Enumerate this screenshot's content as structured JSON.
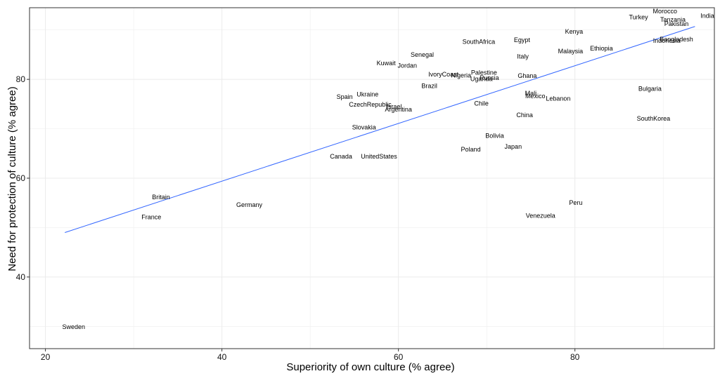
{
  "chart_data": {
    "type": "scatter",
    "title": "",
    "xlabel": "Superiority of own culture (% agree)",
    "ylabel": "Need for protection of culture (% agree)",
    "xlim": [
      18.2,
      95.8
    ],
    "ylim": [
      25.5,
      94.5
    ],
    "x_ticks": [
      20,
      40,
      60,
      80
    ],
    "y_ticks": [
      40,
      60,
      80
    ],
    "grid": true,
    "legend": "none",
    "colors": {
      "trend": "#3366FF",
      "grid": "#EBEBEB",
      "panel_border": "#333333"
    },
    "trend_line": {
      "x": [
        22.2,
        93.6
      ],
      "y": [
        49.0,
        90.7
      ]
    },
    "points": [
      {
        "label": "Sweden",
        "x": 23.2,
        "y": 29.9
      },
      {
        "label": "Britain",
        "x": 33.1,
        "y": 56.2
      },
      {
        "label": "France",
        "x": 32.0,
        "y": 52.1
      },
      {
        "label": "Germany",
        "x": 43.1,
        "y": 54.6
      },
      {
        "label": "Canada",
        "x": 53.5,
        "y": 64.4
      },
      {
        "label": "UnitedStates",
        "x": 57.8,
        "y": 64.4
      },
      {
        "label": "Slovakia",
        "x": 56.1,
        "y": 70.3
      },
      {
        "label": "Spain",
        "x": 53.9,
        "y": 76.5
      },
      {
        "label": "Ukraine",
        "x": 56.5,
        "y": 77.0
      },
      {
        "label": "CzechRepublic",
        "x": 56.8,
        "y": 74.9
      },
      {
        "label": "Israel",
        "x": 59.5,
        "y": 74.5
      },
      {
        "label": "Argentina",
        "x": 60.0,
        "y": 73.9
      },
      {
        "label": "Kuwait",
        "x": 58.6,
        "y": 83.3
      },
      {
        "label": "Jordan",
        "x": 61.0,
        "y": 82.8
      },
      {
        "label": "Senegal",
        "x": 62.7,
        "y": 85.0
      },
      {
        "label": "Brazil",
        "x": 63.5,
        "y": 78.7
      },
      {
        "label": "IvoryCoast",
        "x": 65.1,
        "y": 81.0
      },
      {
        "label": "Nigeria",
        "x": 67.1,
        "y": 80.8
      },
      {
        "label": "Palestine",
        "x": 69.7,
        "y": 81.4
      },
      {
        "label": "Russia",
        "x": 70.3,
        "y": 80.3
      },
      {
        "label": "Uganda",
        "x": 69.4,
        "y": 80.1
      },
      {
        "label": "SouthAfrica",
        "x": 69.1,
        "y": 87.6
      },
      {
        "label": "Egypt",
        "x": 74.0,
        "y": 88.0
      },
      {
        "label": "Chile",
        "x": 69.4,
        "y": 75.1
      },
      {
        "label": "Bolivia",
        "x": 70.9,
        "y": 68.6
      },
      {
        "label": "Poland",
        "x": 68.2,
        "y": 65.8
      },
      {
        "label": "Japan",
        "x": 73.0,
        "y": 66.4
      },
      {
        "label": "Italy",
        "x": 74.1,
        "y": 84.6
      },
      {
        "label": "Ghana",
        "x": 74.6,
        "y": 80.7
      },
      {
        "label": "Mali",
        "x": 75.0,
        "y": 77.2
      },
      {
        "label": "Mexico",
        "x": 75.5,
        "y": 76.6
      },
      {
        "label": "Lebanon",
        "x": 78.1,
        "y": 76.1
      },
      {
        "label": "China",
        "x": 74.3,
        "y": 72.8
      },
      {
        "label": "Kenya",
        "x": 79.9,
        "y": 89.7
      },
      {
        "label": "Malaysia",
        "x": 79.5,
        "y": 85.7
      },
      {
        "label": "Ethiopia",
        "x": 83.0,
        "y": 86.3
      },
      {
        "label": "Peru",
        "x": 80.1,
        "y": 55.0
      },
      {
        "label": "Venezuela",
        "x": 76.1,
        "y": 52.4
      },
      {
        "label": "Turkey",
        "x": 87.2,
        "y": 92.6
      },
      {
        "label": "Morocco",
        "x": 90.2,
        "y": 93.8
      },
      {
        "label": "Tanzania",
        "x": 91.1,
        "y": 92.1
      },
      {
        "label": "Pakistan",
        "x": 91.5,
        "y": 91.2
      },
      {
        "label": "India",
        "x": 95.0,
        "y": 92.9
      },
      {
        "label": "Bangladesh",
        "x": 91.5,
        "y": 88.1
      },
      {
        "label": "Indonesia",
        "x": 90.4,
        "y": 87.8
      },
      {
        "label": "Bulgaria",
        "x": 88.5,
        "y": 78.1
      },
      {
        "label": "SouthKorea",
        "x": 88.9,
        "y": 72.1
      }
    ]
  }
}
